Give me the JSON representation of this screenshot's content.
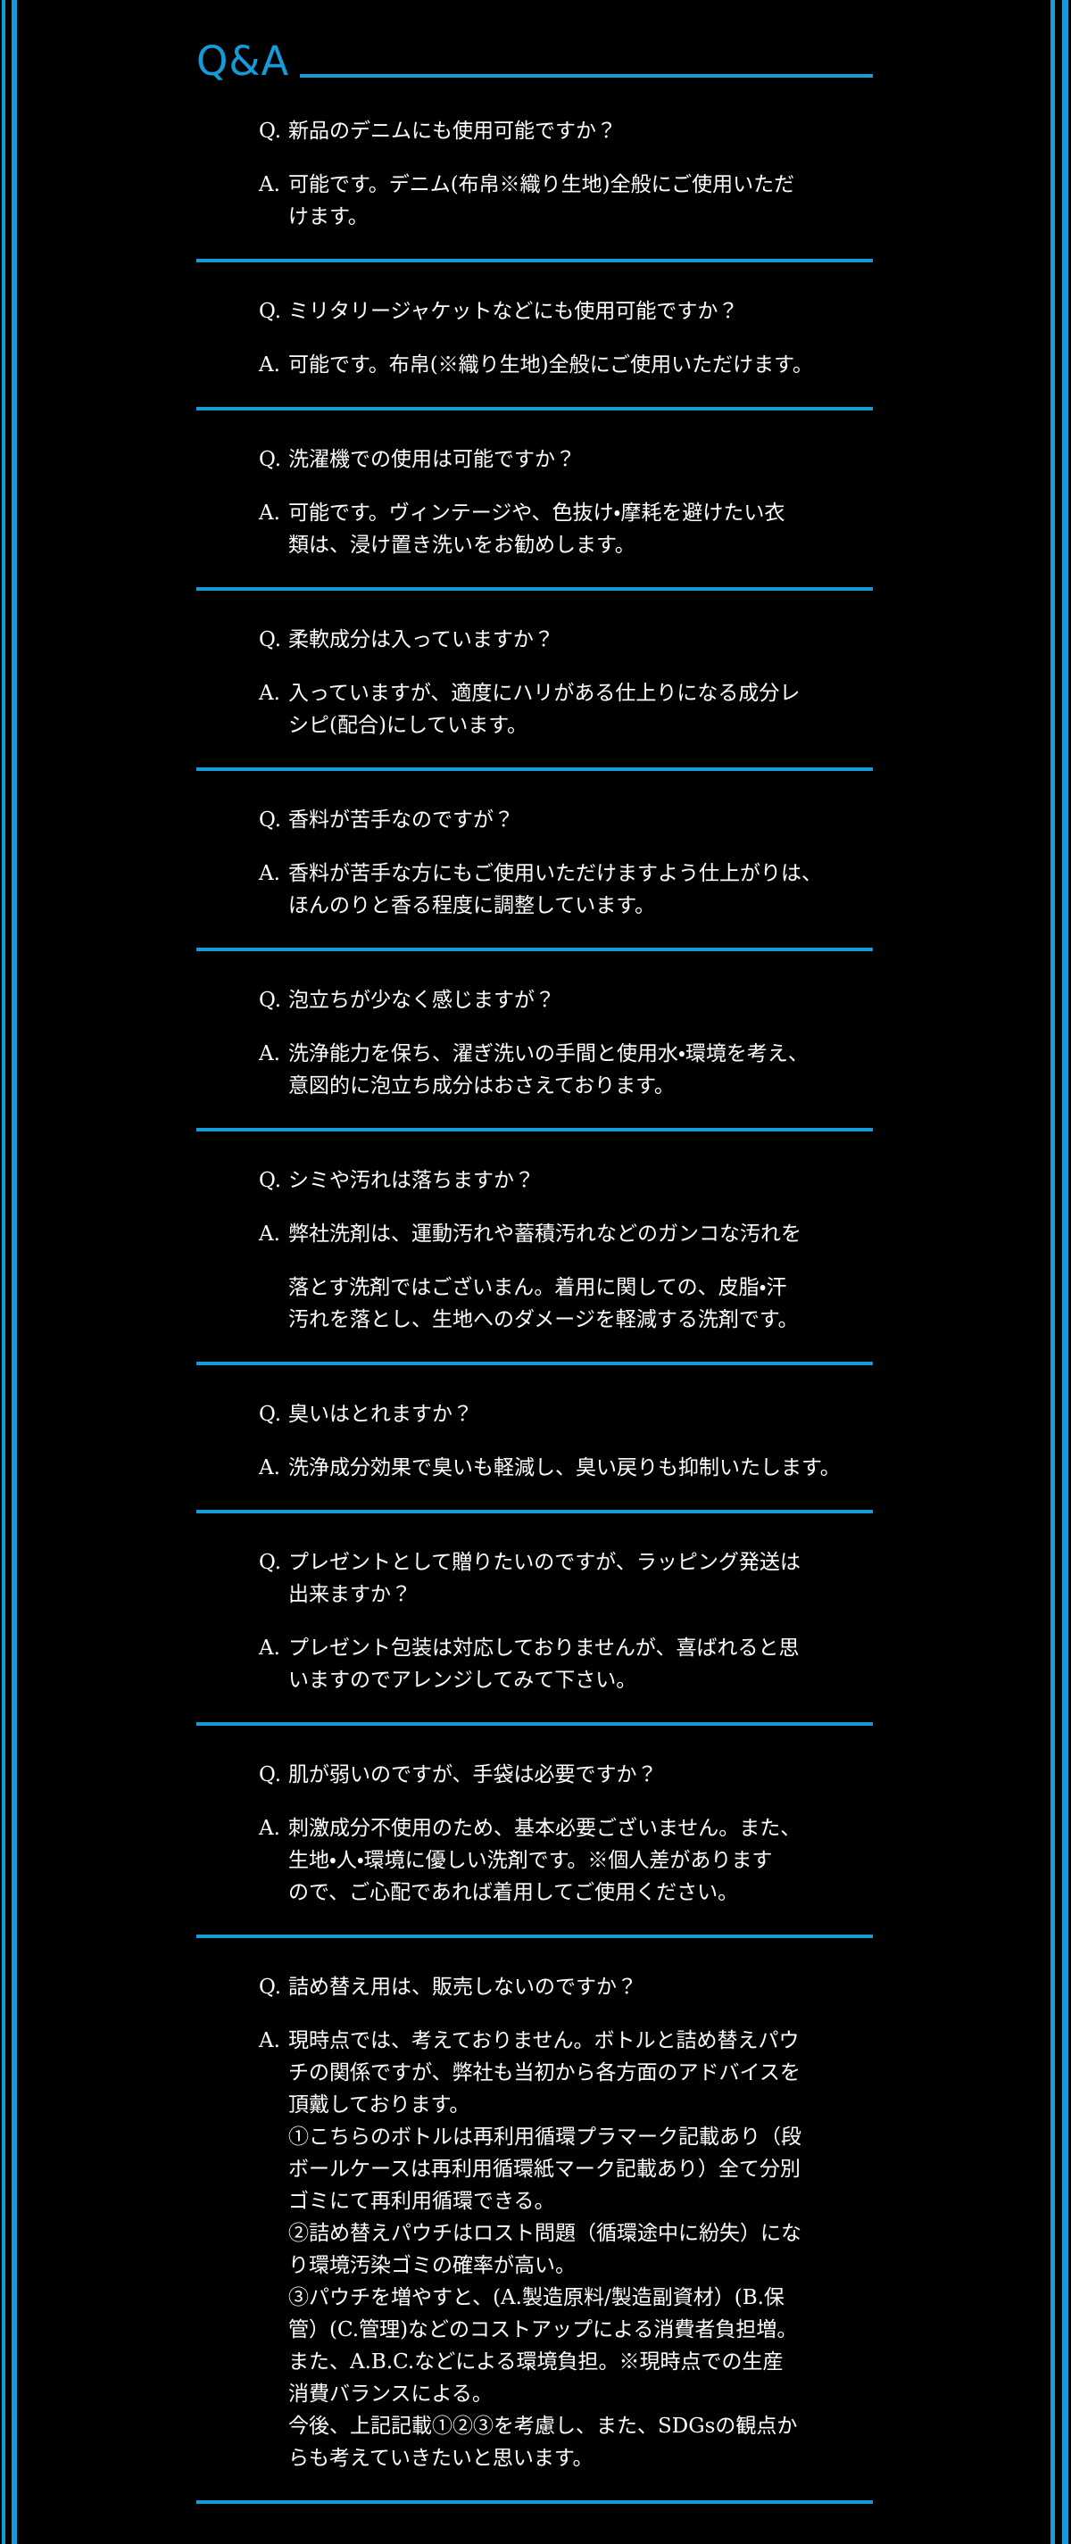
{
  "page": {
    "background": "#000000",
    "accent_color": "#149cd8",
    "text_color": "#ffffff"
  },
  "header": {
    "title": "Q&A"
  },
  "qa": {
    "q_label": "Q.",
    "a_label": "A.",
    "items": [
      {
        "question_lines": [
          "新品のデニムにも使用可能ですか？"
        ],
        "answer_paragraphs": [
          [
            "可能です。デニム(布帛※織り生地)全般にご使用いただ",
            "けます。"
          ]
        ]
      },
      {
        "question_lines": [
          "ミリタリージャケットなどにも使用可能ですか？"
        ],
        "answer_paragraphs": [
          [
            "可能です。布帛(※織り生地)全般にご使用いただけます。"
          ]
        ]
      },
      {
        "question_lines": [
          "洗濯機での使用は可能ですか？"
        ],
        "answer_paragraphs": [
          [
            "可能です。ヴィンテージや、色抜け・摩耗を避けたい衣",
            "類は、浸け置き洗いをお勧めします。"
          ]
        ]
      },
      {
        "question_lines": [
          "柔軟成分は入っていますか？"
        ],
        "answer_paragraphs": [
          [
            "入っていますが、適度にハリがある仕上りになる成分レ",
            "シピ(配合)にしています。"
          ]
        ]
      },
      {
        "question_lines": [
          "香料が苦手なのですが？"
        ],
        "answer_paragraphs": [
          [
            "香料が苦手な方にもご使用いただけますよう仕上がりは、",
            "ほんのりと香る程度に調整しています。"
          ]
        ]
      },
      {
        "question_lines": [
          "泡立ちが少なく感じますが？"
        ],
        "answer_paragraphs": [
          [
            "洗浄能力を保ち、濯ぎ洗いの手間と使用水・環境を考え、",
            "意図的に泡立ち成分はおさえております。"
          ]
        ]
      },
      {
        "question_lines": [
          "シミや汚れは落ちますか？"
        ],
        "answer_paragraphs": [
          [
            "弊社洗剤は、運動汚れや蓄積汚れなどのガンコな汚れを"
          ],
          [
            "落とす洗剤ではございまん。着用に関しての、皮脂・汗",
            "汚れを落とし、生地へのダメージを軽減する洗剤です。"
          ]
        ]
      },
      {
        "question_lines": [
          "臭いはとれますか？"
        ],
        "answer_paragraphs": [
          [
            "洗浄成分効果で臭いも軽減し、臭い戻りも抑制いたします。"
          ]
        ]
      },
      {
        "question_lines": [
          "プレゼントとして贈りたいのですが、ラッピング発送は",
          "出来ますか？"
        ],
        "answer_paragraphs": [
          [
            "プレゼント包装は対応しておりませんが、喜ばれると思",
            "いますのでアレンジしてみて下さい。"
          ]
        ]
      },
      {
        "question_lines": [
          "肌が弱いのですが、手袋は必要ですか？"
        ],
        "answer_paragraphs": [
          [
            "刺激成分不使用のため、基本必要ございません。また、",
            "生地・人・環境に優しい洗剤です。※個人差があります",
            "ので、ご心配であれば着用してご使用ください。"
          ]
        ]
      },
      {
        "question_lines": [
          "詰め替え用は、販売しないのですか？"
        ],
        "answer_paragraphs": [
          [
            "現時点では、考えておりません。ボトルと詰め替えパウ",
            "チの関係ですが、弊社も当初から各方面のアドバイスを",
            "頂戴しております。",
            "①こちらのボトルは再利用循環プラマーク記載あり（段",
            "ボールケースは再利用循環紙マーク記載あり）全て分別",
            "ゴミにて再利用循環できる。",
            "②詰め替えパウチはロスト問題（循環途中に紛失）にな",
            "り環境汚染ゴミの確率が高い。",
            "③パウチを増やすと、(A.製造原料/製造副資材）(B.保",
            "管）(C.管理)などのコストアップによる消費者負担増。",
            "また、A.B.C.などによる環境負担。※現時点での生産",
            "消費バランスによる。",
            "今後、上記記載①②③を考慮し、また、SDGsの観点か",
            "らも考えていきたいと思います。"
          ]
        ]
      }
    ]
  }
}
